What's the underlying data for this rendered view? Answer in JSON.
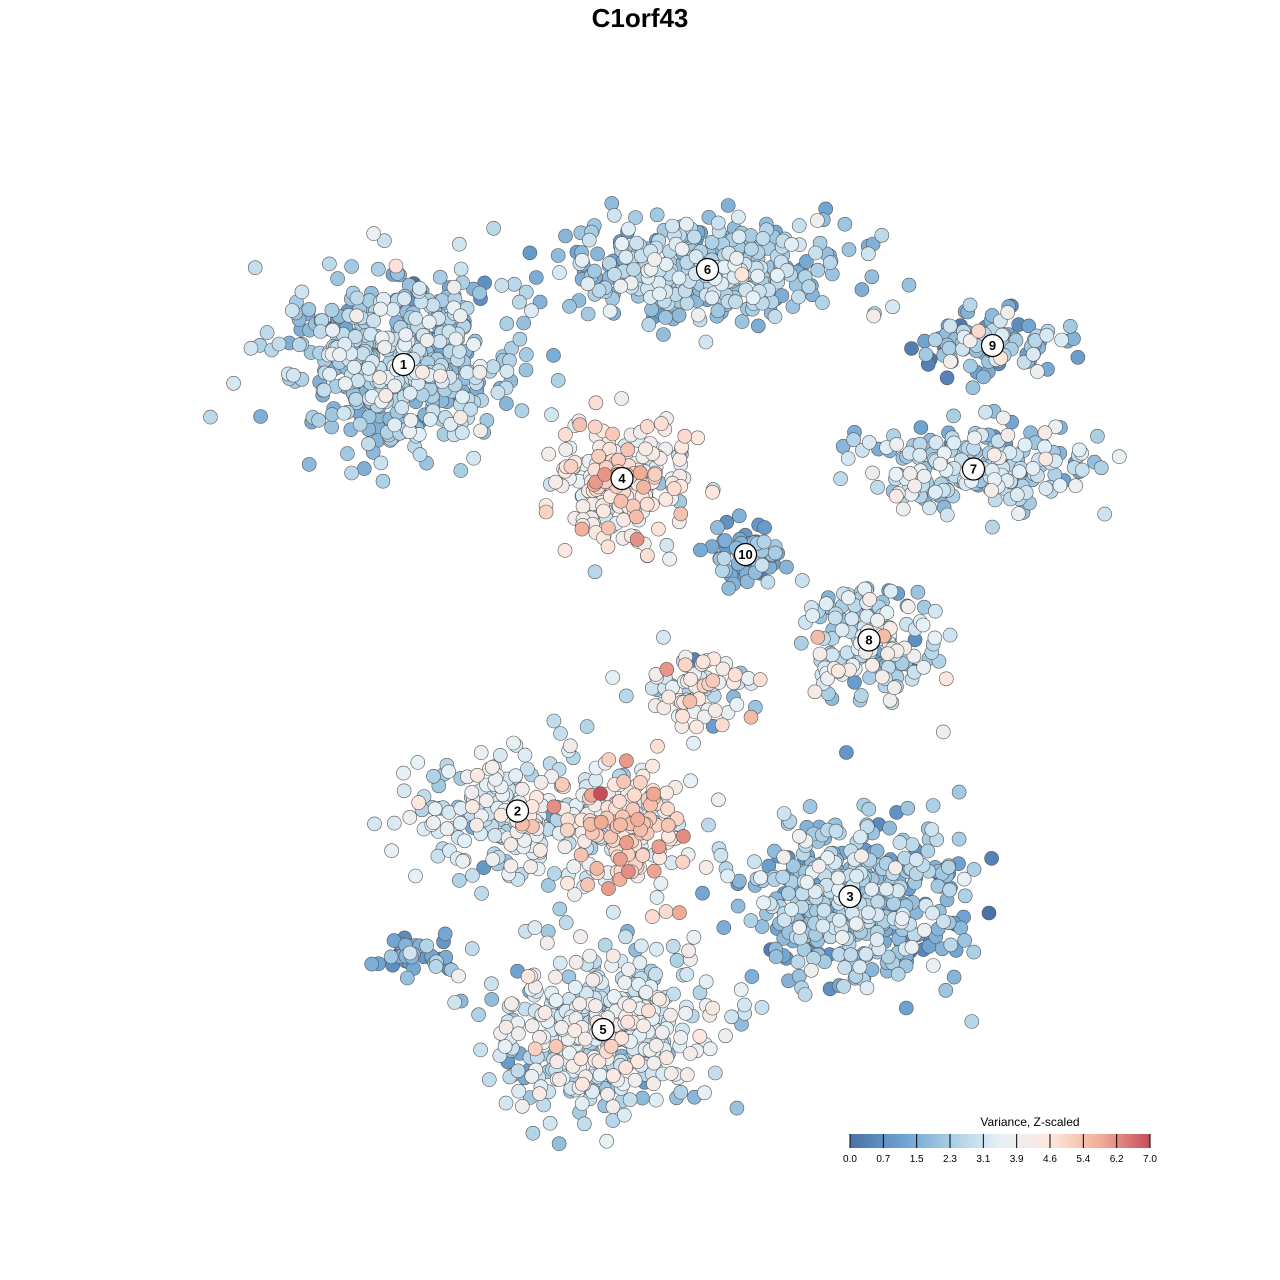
{
  "chart_data": {
    "type": "scatter",
    "title": "C1orf43",
    "colorbar": {
      "title": "Variance, Z-scaled",
      "range": [
        0.0,
        7.0
      ],
      "ticks": [
        "0.0",
        "0.7",
        "1.5",
        "2.3",
        "3.1",
        "3.9",
        "4.6",
        "5.4",
        "6.2",
        "7.0"
      ],
      "colors": [
        "#4a72a8",
        "#6a9fcf",
        "#a7cde4",
        "#e6f1f7",
        "#fde7de",
        "#f2ad96",
        "#c94c5c"
      ],
      "placement": "bottom-right"
    },
    "x_range": [
      -50,
      50
    ],
    "y_range": [
      -50,
      50
    ],
    "clusters": [
      {
        "id": "1",
        "label": "1",
        "center": [
          -27,
          29
        ],
        "spread": [
          11,
          8
        ],
        "n": 520,
        "mean_value": 2.4,
        "sd": 0.7
      },
      {
        "id": "2",
        "label": "2",
        "center": [
          -15,
          -18
        ],
        "spread": [
          10,
          6
        ],
        "n": 230,
        "mean_value": 3.1,
        "sd": 0.7
      },
      {
        "id": "3",
        "label": "3",
        "center": [
          20,
          -27
        ],
        "spread": [
          10,
          8
        ],
        "n": 470,
        "mean_value": 2.2,
        "sd": 0.8
      },
      {
        "id": "4",
        "label": "4",
        "center": [
          -4,
          17
        ],
        "spread": [
          6,
          6
        ],
        "n": 240,
        "mean_value": 4.1,
        "sd": 0.9
      },
      {
        "id": "5",
        "label": "5",
        "center": [
          -6,
          -41
        ],
        "spread": [
          10,
          7
        ],
        "n": 480,
        "mean_value": 3.1,
        "sd": 0.8
      },
      {
        "id": "6",
        "label": "6",
        "center": [
          5,
          39
        ],
        "spread": [
          13,
          5
        ],
        "n": 380,
        "mean_value": 2.4,
        "sd": 0.7
      },
      {
        "id": "7",
        "label": "7",
        "center": [
          33,
          18
        ],
        "spread": [
          12,
          4
        ],
        "n": 220,
        "mean_value": 2.6,
        "sd": 0.8
      },
      {
        "id": "8",
        "label": "8",
        "center": [
          22,
          0
        ],
        "spread": [
          7,
          5
        ],
        "n": 160,
        "mean_value": 2.9,
        "sd": 0.9
      },
      {
        "id": "9",
        "label": "9",
        "center": [
          35,
          31
        ],
        "spread": [
          8,
          3
        ],
        "n": 110,
        "mean_value": 2.0,
        "sd": 0.9
      },
      {
        "id": "10",
        "label": "10",
        "center": [
          9,
          9
        ],
        "spread": [
          3,
          3
        ],
        "n": 55,
        "mean_value": 1.6,
        "sd": 0.7
      },
      {
        "id": "core",
        "label": "",
        "center": [
          -4,
          -20
        ],
        "spread": [
          6,
          6
        ],
        "n": 170,
        "mean_value": 4.6,
        "sd": 1.0
      },
      {
        "id": "bridge",
        "label": "",
        "center": [
          4,
          -5
        ],
        "spread": [
          6,
          4
        ],
        "n": 80,
        "mean_value": 3.6,
        "sd": 1.1
      },
      {
        "id": "island",
        "label": "",
        "center": [
          -26,
          -33
        ],
        "spread": [
          4,
          2
        ],
        "n": 40,
        "mean_value": 1.4,
        "sd": 0.8
      }
    ]
  }
}
